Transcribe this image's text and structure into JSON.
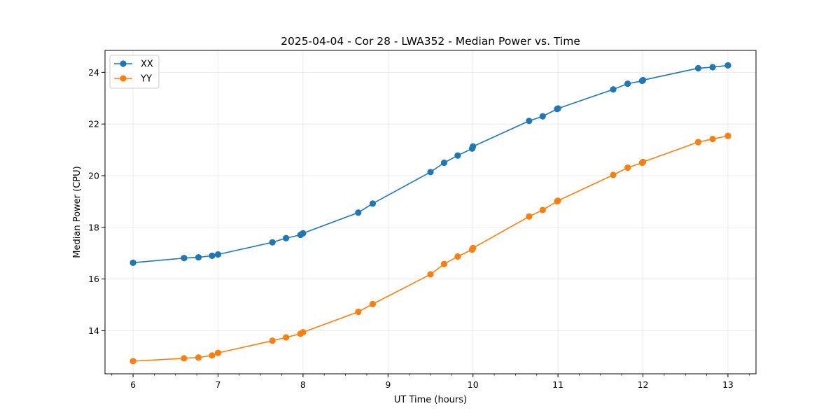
{
  "chart_data": {
    "type": "line",
    "title": "2025-04-04 - Cor 28 - LWA352 - Median Power vs. Time",
    "xlabel": "UT Time (hours)",
    "ylabel": "Median Power (CPU)",
    "xlim": [
      5.67,
      13.33
    ],
    "ylim": [
      12.33,
      24.85
    ],
    "xticks": [
      6,
      7,
      8,
      9,
      10,
      11,
      12,
      13
    ],
    "xtick_labels": [
      "6",
      "7",
      "8",
      "9",
      "10",
      "11",
      "12",
      "13"
    ],
    "yticks": [
      14,
      16,
      18,
      20,
      22,
      24
    ],
    "ytick_labels": [
      "14",
      "16",
      "18",
      "20",
      "22",
      "24"
    ],
    "grid": true,
    "legend_position": "upper-left",
    "x": [
      6.0,
      6.6,
      6.77,
      6.93,
      7.0,
      7.64,
      7.8,
      7.97,
      8.0,
      8.65,
      8.82,
      9.5,
      9.66,
      9.82,
      9.99,
      10.0,
      10.66,
      10.82,
      10.99,
      11.0,
      11.65,
      11.82,
      11.99,
      12.0,
      12.65,
      12.82,
      13.0
    ],
    "series": [
      {
        "name": "XX",
        "color": "#1f77b4",
        "values": [
          16.63,
          16.81,
          16.84,
          16.9,
          16.95,
          17.42,
          17.58,
          17.71,
          17.77,
          18.57,
          18.92,
          20.14,
          20.5,
          20.78,
          21.05,
          21.13,
          22.12,
          22.3,
          22.58,
          22.6,
          23.34,
          23.56,
          23.67,
          23.7,
          24.16,
          24.2,
          24.27
        ]
      },
      {
        "name": "YY",
        "color": "#ff7f0e",
        "values": [
          12.82,
          12.93,
          12.96,
          13.04,
          13.14,
          13.61,
          13.74,
          13.88,
          13.94,
          14.73,
          15.03,
          16.18,
          16.58,
          16.87,
          17.14,
          17.2,
          18.42,
          18.67,
          19.01,
          19.03,
          20.03,
          20.31,
          20.5,
          20.53,
          21.3,
          21.42,
          21.54
        ]
      }
    ]
  }
}
